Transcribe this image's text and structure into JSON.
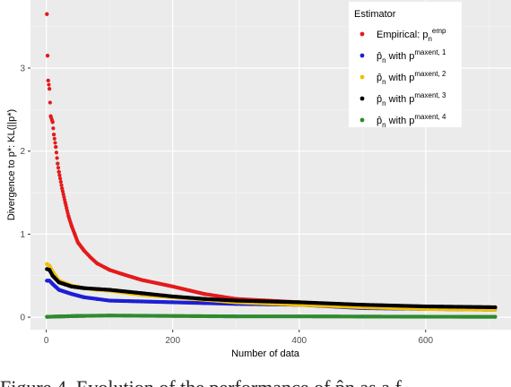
{
  "chart_data": {
    "type": "scatter",
    "xlabel": "Number of data",
    "ylabel": "Divergence to p*: KL(||p*)",
    "xlim": [
      -25,
      735
    ],
    "ylim": [
      -0.15,
      3.82
    ],
    "x_ticks": [
      0,
      200,
      400,
      600
    ],
    "x_tick_labels": [
      "0",
      "200",
      "400",
      "600"
    ],
    "y_ticks": [
      0,
      1,
      2,
      3
    ],
    "y_tick_labels": [
      "0",
      "1",
      "2",
      "3"
    ],
    "grid": true,
    "background": "#ebebeb",
    "legend": {
      "title": "Estimator",
      "placement": "top-right",
      "entries": [
        {
          "base": "Empirical: p",
          "sub": "n",
          "sup": "emp",
          "color": "#e41a1c"
        },
        {
          "base": "p̂",
          "sub": "n",
          "mid": " with p",
          "sup": "maxent, 1",
          "color": "#1f1fd6"
        },
        {
          "base": "p̂",
          "sub": "n",
          "mid": " with p",
          "sup": "maxent, 2",
          "color": "#f0c000"
        },
        {
          "base": "p̂",
          "sub": "n",
          "mid": " with p",
          "sup": "maxent, 3",
          "color": "#000000"
        },
        {
          "base": "p̂",
          "sub": "n",
          "mid": " with p",
          "sup": "maxent, 4",
          "color": "#2e8b2e"
        }
      ]
    },
    "series": [
      {
        "color": "#e41a1c",
        "x": [
          1,
          2,
          3,
          5,
          7,
          10,
          12,
          15,
          18,
          20,
          25,
          30,
          35,
          40,
          45,
          50,
          60,
          70,
          80,
          100,
          120,
          150,
          200,
          250,
          300,
          350,
          400,
          450,
          500,
          550,
          600,
          650,
          700,
          710
        ],
        "y": [
          3.65,
          3.15,
          2.85,
          2.75,
          2.42,
          2.35,
          2.2,
          2.05,
          1.85,
          1.75,
          1.55,
          1.38,
          1.22,
          1.1,
          1.0,
          0.9,
          0.8,
          0.72,
          0.65,
          0.57,
          0.52,
          0.45,
          0.37,
          0.28,
          0.22,
          0.2,
          0.18,
          0.16,
          0.14,
          0.13,
          0.12,
          0.11,
          0.1,
          0.1
        ]
      },
      {
        "color": "#1f1fd6",
        "x": [
          1,
          5,
          10,
          20,
          40,
          60,
          80,
          100,
          150,
          200,
          250,
          300,
          400,
          500,
          600,
          710
        ],
        "y": [
          0.44,
          0.44,
          0.4,
          0.33,
          0.28,
          0.24,
          0.22,
          0.2,
          0.19,
          0.18,
          0.17,
          0.16,
          0.15,
          0.11,
          0.1,
          0.09
        ]
      },
      {
        "color": "#f0c000",
        "x": [
          1,
          5,
          10,
          20,
          40,
          60,
          80,
          100,
          150,
          200,
          250,
          300,
          400,
          500,
          600,
          710
        ],
        "y": [
          0.64,
          0.62,
          0.55,
          0.44,
          0.38,
          0.35,
          0.33,
          0.32,
          0.27,
          0.24,
          0.21,
          0.18,
          0.15,
          0.12,
          0.1,
          0.09
        ]
      },
      {
        "color": "#000000",
        "x": [
          1,
          5,
          10,
          20,
          40,
          60,
          80,
          100,
          150,
          200,
          250,
          300,
          400,
          500,
          600,
          710
        ],
        "y": [
          0.58,
          0.57,
          0.5,
          0.42,
          0.37,
          0.35,
          0.34,
          0.33,
          0.29,
          0.25,
          0.22,
          0.2,
          0.18,
          0.15,
          0.13,
          0.12
        ]
      },
      {
        "color": "#2e8b2e",
        "x": [
          1,
          50,
          100,
          200,
          300,
          400,
          500,
          600,
          710
        ],
        "y": [
          0.005,
          0.015,
          0.02,
          0.015,
          0.01,
          0.01,
          0.008,
          0.006,
          0.005
        ]
      }
    ]
  },
  "caption": "Figure 4. Evolution of the performance of p̂n as a f"
}
